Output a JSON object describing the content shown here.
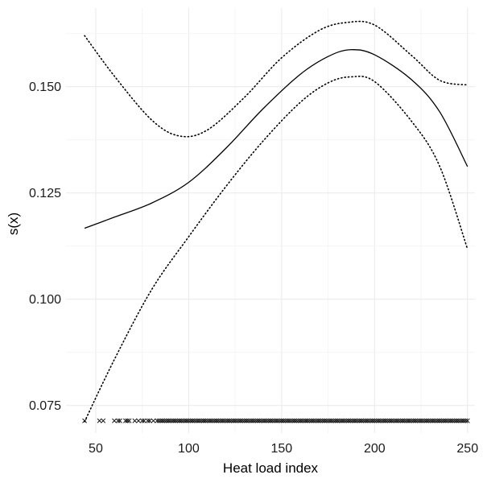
{
  "chart_data": {
    "type": "line",
    "title": "",
    "xlabel": "Heat load index",
    "ylabel": "s(x)",
    "xlim": [
      34,
      254
    ],
    "ylim": [
      0.0685,
      0.1685
    ],
    "x_ticks": [
      50,
      100,
      150,
      200,
      250
    ],
    "x_tick_labels": [
      "50",
      "100",
      "150",
      "200",
      "250"
    ],
    "y_ticks": [
      0.075,
      0.1,
      0.125,
      0.15
    ],
    "y_tick_labels": [
      "0.075",
      "0.100",
      "0.125",
      "0.150"
    ],
    "grid": true,
    "legend": "none",
    "series": [
      {
        "role": "fit",
        "style": "solid",
        "x": [
          44,
          60,
          80,
          100,
          120,
          140,
          160,
          175,
          187,
          200,
          220,
          235,
          250
        ],
        "y": [
          0.1167,
          0.1193,
          0.1226,
          0.1275,
          0.1355,
          0.1448,
          0.1529,
          0.1571,
          0.1587,
          0.1575,
          0.1516,
          0.1441,
          0.1312
        ]
      },
      {
        "role": "upper",
        "style": "dotted",
        "x": [
          44,
          60,
          80,
          95,
          110,
          130,
          150,
          170,
          185,
          200,
          220,
          235,
          250
        ],
        "y": [
          0.162,
          0.1525,
          0.1422,
          0.1384,
          0.1398,
          0.1475,
          0.1568,
          0.1632,
          0.1651,
          0.1645,
          0.1573,
          0.1515,
          0.1504
        ]
      },
      {
        "role": "lower",
        "style": "dotted",
        "x": [
          44,
          60,
          80,
          100,
          120,
          140,
          160,
          175,
          187,
          200,
          220,
          235,
          250
        ],
        "y": [
          0.0712,
          0.0858,
          0.1022,
          0.1147,
          0.1265,
          0.1372,
          0.1463,
          0.1509,
          0.1523,
          0.1512,
          0.1418,
          0.1313,
          0.1118
        ]
      }
    ],
    "rug": {
      "marker": "×",
      "y": 0.0714,
      "x": [
        44,
        52,
        54,
        60,
        62,
        63,
        66,
        67,
        68,
        71,
        73,
        75,
        76,
        78,
        79,
        81,
        83,
        84,
        85,
        86,
        87,
        88,
        89,
        90,
        91,
        92,
        93,
        94,
        95,
        96,
        97,
        98,
        99,
        100,
        101,
        102,
        103,
        104,
        105,
        106,
        107,
        108,
        109,
        110,
        111,
        112,
        113,
        114,
        115,
        116,
        117,
        118,
        119,
        120,
        121,
        122,
        123,
        124,
        125,
        126,
        127,
        128,
        129,
        130,
        131,
        132,
        133,
        134,
        135,
        136,
        137,
        138,
        139,
        140,
        141,
        142,
        143,
        144,
        145,
        146,
        147,
        148,
        149,
        150,
        151,
        152,
        153,
        154,
        155,
        156,
        157,
        158,
        159,
        160,
        161,
        162,
        163,
        164,
        165,
        166,
        167,
        168,
        169,
        170,
        171,
        172,
        173,
        174,
        175,
        176,
        177,
        178,
        179,
        180,
        181,
        182,
        183,
        184,
        185,
        186,
        187,
        188,
        189,
        190,
        191,
        192,
        193,
        194,
        195,
        196,
        197,
        198,
        199,
        200,
        201,
        202,
        203,
        204,
        205,
        206,
        207,
        208,
        209,
        210,
        211,
        212,
        213,
        214,
        215,
        216,
        217,
        218,
        219,
        220,
        221,
        222,
        223,
        224,
        225,
        226,
        227,
        228,
        229,
        230,
        231,
        232,
        233,
        234,
        235,
        236,
        237,
        238,
        239,
        240,
        241,
        242,
        243,
        244,
        245,
        246,
        247,
        248,
        249,
        250
      ]
    }
  }
}
